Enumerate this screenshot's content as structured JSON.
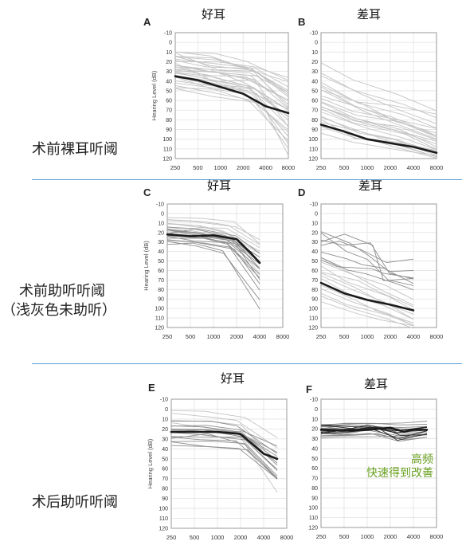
{
  "colors": {
    "grid": "#e2e2e2",
    "frame": "#9a9a9a",
    "light_line": "#c3c3c3",
    "medium_line": "#8e8e8e",
    "dark_line": "#2b2b2b",
    "mean_line": "#1a1a1a",
    "divider": "#5b9bd5",
    "note": "#6aa121"
  },
  "row_labels": {
    "r1": "术前裸耳听阈",
    "r2_line1": "术前助听听阈",
    "r2_line2": "（浅灰色未助听）",
    "r3": "术后助听听阈"
  },
  "note": {
    "line1": "高频",
    "line2": "快速得到改善"
  },
  "chart_data": [
    {
      "id": "A",
      "panel_letter": "A",
      "title": "好耳",
      "type": "line",
      "ylabel": "Hearing Level (dB)",
      "y_reversed": true,
      "ylim": [
        -10,
        120
      ],
      "yticks": [
        -10,
        0,
        10,
        20,
        30,
        40,
        50,
        60,
        70,
        80,
        90,
        100,
        110,
        120
      ],
      "xticks": [
        "250",
        "500",
        "1000",
        "2000",
        "4000",
        "8000"
      ],
      "x_scale": "log2",
      "x_range": [
        250,
        8000
      ],
      "mean": {
        "x": [
          250,
          500,
          1000,
          2000,
          4000,
          8000
        ],
        "y": [
          35,
          39,
          46,
          53,
          66,
          73
        ]
      },
      "light": [
        [
          5,
          18,
          22,
          26,
          47
        ],
        [
          1.5,
          10,
          12,
          20,
          40
        ],
        [
          4.5,
          25,
          30,
          33,
          50
        ],
        [
          -1,
          35,
          45,
          48,
          70
        ],
        [
          8,
          28,
          34,
          37,
          60
        ],
        [
          3,
          20,
          40,
          40,
          60
        ],
        [
          2.5,
          24,
          38,
          45,
          78
        ],
        [
          6,
          15,
          18,
          30,
          48
        ],
        [
          0.5,
          30,
          34,
          44,
          85
        ],
        [
          7,
          38,
          42,
          52,
          98
        ],
        [
          2,
          12,
          28,
          28,
          55
        ],
        [
          5.5,
          45,
          50,
          52,
          93
        ],
        [
          3.5,
          22,
          32,
          36,
          70
        ],
        [
          1,
          28,
          32,
          40,
          88
        ],
        [
          6.5,
          10,
          14,
          26,
          40
        ],
        [
          4,
          40,
          45,
          47,
          75
        ],
        [
          7.5,
          16,
          26,
          28,
          50
        ],
        [
          2.5,
          35,
          42,
          52,
          115
        ],
        [
          5,
          26,
          30,
          38,
          62
        ],
        [
          0,
          20,
          24,
          26,
          58
        ],
        [
          3.5,
          30,
          38,
          48,
          82
        ],
        [
          6,
          42,
          48,
          50,
          70
        ],
        [
          1.5,
          14,
          20,
          26,
          66
        ],
        [
          4.5,
          48,
          55,
          62,
          110
        ],
        [
          8,
          24,
          28,
          42,
          72
        ],
        [
          2,
          32,
          40,
          46,
          105
        ],
        [
          5.5,
          18,
          22,
          26,
          36
        ],
        [
          0.5,
          25,
          32,
          35,
          64
        ],
        [
          7,
          36,
          46,
          60,
          100
        ],
        [
          3,
          44,
          52,
          58,
          90
        ]
      ],
      "mid": [],
      "dark": []
    },
    {
      "id": "B",
      "panel_letter": "B",
      "title": "差耳",
      "type": "line",
      "ylabel": "",
      "y_reversed": true,
      "ylim": [
        -10,
        120
      ],
      "yticks": [
        -10,
        0,
        10,
        20,
        30,
        40,
        50,
        60,
        70,
        80,
        90,
        100,
        110,
        120
      ],
      "xticks": [
        "250",
        "500",
        "1000",
        "2000",
        "4000",
        "8000"
      ],
      "x_scale": "log2",
      "x_range": [
        250,
        8000
      ],
      "mean": {
        "x": [
          250,
          500,
          1000,
          2000,
          4000,
          8000
        ],
        "y": [
          85,
          92,
          100,
          104,
          108,
          114
        ]
      },
      "light": [
        [
          5,
          20,
          40,
          55,
          70
        ],
        [
          1,
          30,
          55,
          70,
          85
        ],
        [
          3.5,
          45,
          65,
          78,
          95
        ],
        [
          7,
          50,
          72,
          85,
          100
        ],
        [
          2,
          62,
          78,
          90,
          108
        ],
        [
          5.5,
          70,
          85,
          95,
          110
        ],
        [
          0,
          78,
          95,
          100,
          115
        ],
        [
          8,
          82,
          92,
          104,
          118
        ],
        [
          4,
          40,
          62,
          75,
          90
        ],
        [
          6.5,
          55,
          70,
          82,
          96
        ],
        [
          1.5,
          65,
          82,
          88,
          100
        ],
        [
          3,
          72,
          90,
          98,
          112
        ],
        [
          7.5,
          86,
          96,
          106,
          118
        ],
        [
          2.5,
          50,
          62,
          80,
          92
        ],
        [
          6,
          60,
          76,
          84,
          98
        ],
        [
          0.5,
          68,
          80,
          92,
          105
        ],
        [
          4.5,
          75,
          92,
          102,
          116
        ],
        [
          8,
          88,
          98,
          108,
          119
        ],
        [
          5,
          35,
          50,
          62,
          78
        ],
        [
          3.5,
          58,
          72,
          80,
          88
        ],
        [
          1,
          80,
          100,
          104,
          110
        ],
        [
          6.5,
          92,
          102,
          110,
          118
        ],
        [
          2,
          46,
          60,
          66,
          75
        ],
        [
          7,
          66,
          84,
          90,
          104
        ]
      ],
      "mid": [],
      "dark": []
    },
    {
      "id": "C",
      "panel_letter": "C",
      "title": "好耳",
      "type": "line",
      "ylabel": "Hearing Level (dB)",
      "y_reversed": true,
      "ylim": [
        -10,
        120
      ],
      "yticks": [
        -10,
        0,
        10,
        20,
        30,
        40,
        50,
        60,
        70,
        80,
        90,
        100,
        110,
        120
      ],
      "xticks": [
        "250",
        "500",
        "1000",
        "2000",
        "4000",
        "8000"
      ],
      "x_scale": "log2",
      "x_range": [
        250,
        4000
      ],
      "mean": {
        "x": [
          250,
          500,
          1000,
          2000,
          3000,
          4000
        ],
        "y": [
          22,
          24,
          23,
          27,
          41,
          52
        ]
      },
      "light": [
        [
          2,
          8,
          10,
          14,
          28
        ],
        [
          5,
          12,
          14,
          16,
          38
        ],
        [
          7,
          18,
          20,
          24,
          48
        ],
        [
          1,
          6,
          5,
          8,
          32
        ],
        [
          4,
          10,
          14,
          20,
          44
        ],
        [
          6,
          14,
          18,
          26,
          52
        ],
        [
          3,
          16,
          20,
          28,
          58
        ],
        [
          0,
          10,
          12,
          18,
          40
        ],
        [
          6.5,
          8,
          10,
          12,
          34
        ],
        [
          2.5,
          20,
          24,
          30,
          62
        ]
      ],
      "mid": [
        [
          3,
          15,
          18,
          22,
          40
        ],
        [
          5,
          18,
          20,
          28,
          55
        ],
        [
          1.5,
          22,
          24,
          30,
          60
        ],
        [
          6,
          25,
          27,
          32,
          70
        ],
        [
          3.5,
          20,
          18,
          24,
          48
        ],
        [
          7,
          28,
          30,
          36,
          80
        ],
        [
          0.5,
          16,
          20,
          26,
          52
        ],
        [
          4,
          30,
          34,
          40,
          90
        ],
        [
          2,
          24,
          26,
          34,
          68
        ],
        [
          5.5,
          19,
          22,
          28,
          58
        ],
        [
          8,
          32,
          30,
          38,
          100
        ],
        [
          2.5,
          26,
          28,
          30,
          64
        ],
        [
          6.5,
          21,
          24,
          27,
          50
        ],
        [
          1,
          27,
          30,
          36,
          75
        ]
      ],
      "dark": []
    },
    {
      "id": "D",
      "panel_letter": "D",
      "title": "差耳",
      "type": "line",
      "ylabel": "",
      "y_reversed": true,
      "ylim": [
        -10,
        120
      ],
      "yticks": [
        -10,
        0,
        10,
        20,
        30,
        40,
        50,
        60,
        70,
        80,
        90,
        100,
        110,
        120
      ],
      "xticks": [
        "250",
        "500",
        "1000",
        "2000",
        "4000",
        "8000"
      ],
      "x_scale": "log2",
      "x_range": [
        250,
        4000
      ],
      "mean": {
        "x": [
          250,
          500,
          1000,
          2000,
          4000
        ],
        "y": [
          73,
          84,
          91,
          96,
          102
        ]
      },
      "light": [
        [
          2,
          45,
          62,
          80,
          95
        ],
        [
          5,
          55,
          72,
          86,
          102
        ],
        [
          1,
          62,
          78,
          92,
          108
        ],
        [
          7,
          70,
          86,
          98,
          112
        ],
        [
          3.5,
          80,
          92,
          104,
          118
        ],
        [
          6,
          60,
          70,
          82,
          98
        ],
        [
          0,
          88,
          100,
          110,
          119
        ],
        [
          4,
          50,
          66,
          76,
          92
        ],
        [
          8,
          76,
          90,
          102,
          116
        ],
        [
          2.5,
          92,
          104,
          112,
          119
        ],
        [
          5.5,
          66,
          80,
          94,
          110
        ],
        [
          1.5,
          84,
          96,
          106,
          118
        ]
      ],
      "mid": [
        [
          3,
          18,
          30,
          45,
          60,
          60
        ],
        [
          6,
          30,
          22,
          35,
          70,
          70
        ],
        [
          1,
          40,
          48,
          55,
          58,
          72
        ],
        [
          7,
          22,
          38,
          50,
          68,
          75
        ],
        [
          4.5,
          50,
          55,
          60,
          65,
          68
        ],
        [
          2,
          35,
          28,
          40,
          50,
          50
        ],
        [
          5,
          45,
          60,
          62,
          72,
          80
        ],
        [
          8,
          28,
          35,
          30,
          62,
          70
        ]
      ],
      "dark": []
    },
    {
      "id": "E",
      "panel_letter": "E",
      "title": "好耳",
      "type": "line",
      "ylabel": "Hearing Level (dB)",
      "y_reversed": true,
      "ylim": [
        -10,
        120
      ],
      "yticks": [
        -10,
        0,
        10,
        20,
        30,
        40,
        50,
        60,
        70,
        80,
        90,
        100,
        110,
        120
      ],
      "xticks": [
        "250",
        "500",
        "1000",
        "2000",
        "4000",
        "8000"
      ],
      "x_scale": "log2",
      "x_range": [
        250,
        6000
      ],
      "mean": {
        "x": [
          250,
          500,
          1000,
          2000,
          4000,
          6000
        ],
        "y": [
          23,
          23,
          23,
          25,
          45,
          50
        ]
      },
      "light": [
        [
          2,
          5,
          8,
          12,
          40
        ],
        [
          6,
          10,
          14,
          16,
          55
        ],
        [
          4,
          0,
          4,
          8,
          30
        ],
        [
          8,
          14,
          18,
          22,
          70
        ],
        [
          1,
          20,
          22,
          28,
          85
        ]
      ],
      "mid": [
        [
          3,
          18,
          18,
          22,
          42
        ],
        [
          5,
          22,
          24,
          24,
          55
        ],
        [
          1.5,
          25,
          28,
          30,
          60
        ],
        [
          7,
          28,
          30,
          32,
          68
        ],
        [
          2.5,
          16,
          16,
          20,
          38
        ],
        [
          6.5,
          30,
          26,
          34,
          70
        ],
        [
          0.5,
          20,
          22,
          28,
          50
        ],
        [
          4.5,
          34,
          36,
          38,
          72
        ],
        [
          3.5,
          24,
          20,
          26,
          48
        ],
        [
          8,
          36,
          38,
          40,
          70
        ],
        [
          1,
          14,
          12,
          18,
          45
        ],
        [
          5.5,
          27,
          30,
          28,
          62
        ],
        [
          2,
          32,
          34,
          36,
          66
        ],
        [
          6,
          21,
          20,
          24,
          52
        ]
      ],
      "dark": []
    },
    {
      "id": "F",
      "panel_letter": "F",
      "title": "差耳",
      "type": "line",
      "ylabel": "",
      "y_reversed": true,
      "ylim": [
        -10,
        120
      ],
      "yticks": [
        -10,
        0,
        10,
        20,
        30,
        40,
        50,
        60,
        70,
        80,
        90,
        100,
        110,
        120
      ],
      "xticks": [
        "250",
        "500",
        "1000",
        "2000",
        "4000",
        "8000"
      ],
      "x_scale": "log2",
      "x_range": [
        250,
        6000
      ],
      "mean": {
        "x": [
          250,
          500,
          1000,
          2000,
          3000,
          4000,
          6000
        ],
        "y": [
          21,
          22,
          21,
          19,
          23,
          21,
          21
        ]
      },
      "light": [],
      "mid": [
        [
          2,
          15,
          16,
          14,
          16,
          14
        ],
        [
          5,
          18,
          20,
          18,
          22,
          20
        ],
        [
          7,
          24,
          26,
          22,
          28,
          26
        ],
        [
          1,
          28,
          26,
          24,
          30,
          28
        ],
        [
          4,
          20,
          18,
          20,
          24,
          22
        ],
        [
          6,
          26,
          28,
          26,
          32,
          30
        ],
        [
          3,
          16,
          14,
          16,
          20,
          18
        ],
        [
          8,
          30,
          28,
          28,
          26,
          24
        ],
        [
          2.5,
          22,
          24,
          22,
          28,
          24
        ],
        [
          6.5,
          18,
          16,
          14,
          18,
          16
        ],
        [
          4.5,
          26,
          24,
          24,
          30,
          26
        ],
        [
          0.5,
          20,
          22,
          20,
          22,
          20
        ]
      ],
      "dark": [
        [
          3,
          24,
          22,
          20,
          30,
          24
        ],
        [
          5,
          17,
          18,
          16,
          20,
          18
        ],
        [
          7,
          26,
          24,
          22,
          28,
          22
        ],
        [
          1.5,
          20,
          20,
          18,
          25,
          20
        ],
        [
          6,
          22,
          22,
          19,
          27,
          25
        ],
        [
          2,
          18,
          19,
          17,
          24,
          19
        ]
      ]
    }
  ]
}
